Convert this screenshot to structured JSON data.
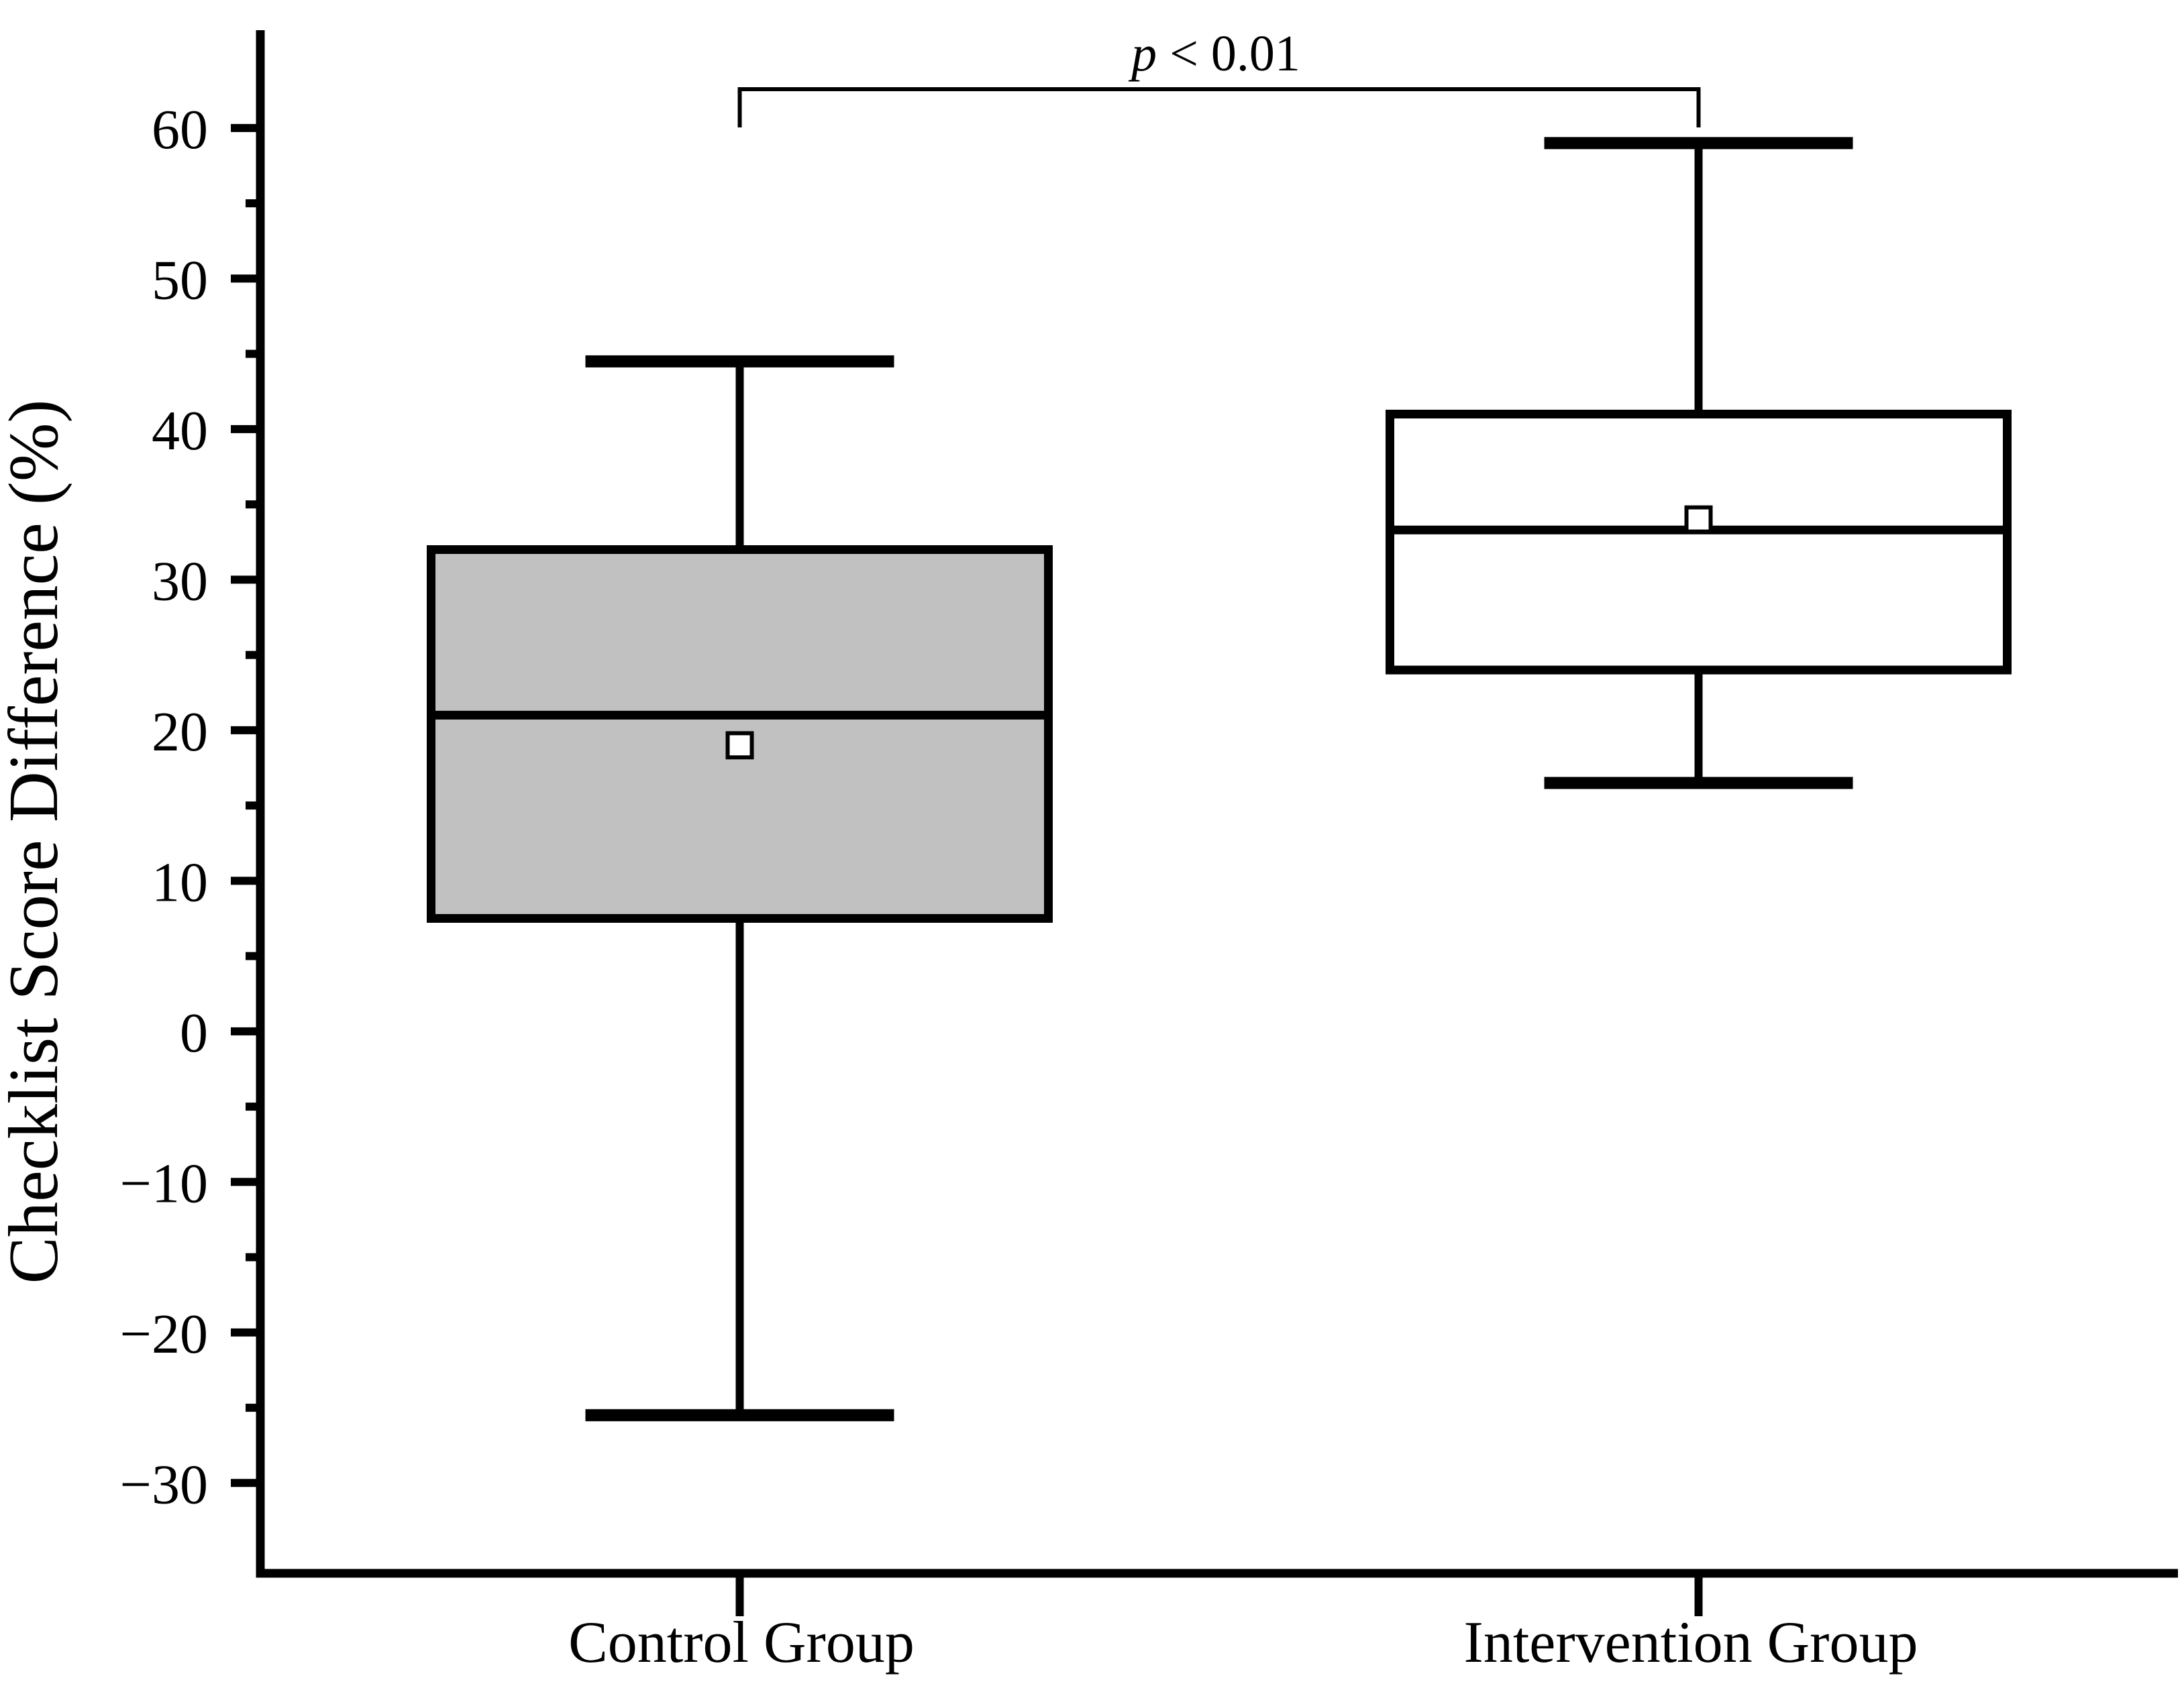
{
  "chart_data": {
    "type": "box",
    "title": "",
    "xlabel": "",
    "ylabel": "Checklist Score Difference (%)",
    "categories": [
      "Control Group",
      "Intervention Group"
    ],
    "ylim": [
      -36,
      66.5
    ],
    "yticks_major": [
      60,
      50,
      40,
      30,
      20,
      10,
      0,
      -10,
      -20,
      -30
    ],
    "yticks_minor": [
      55,
      45,
      35,
      25,
      15,
      5,
      -5,
      -15,
      -25
    ],
    "grid": false,
    "legend": "none",
    "series": [
      {
        "name": "Control Group",
        "whisker_low": -25.5,
        "q1": 7.5,
        "median": 21,
        "mean": 19,
        "q3": 32,
        "whisker_high": 44.5,
        "fill": "#c1c1c1"
      },
      {
        "name": "Intervention Group",
        "whisker_low": 16.5,
        "q1": 24,
        "median": 33.3,
        "mean": 34,
        "q3": 41,
        "whisker_high": 59,
        "fill": "#ffffff"
      }
    ],
    "annotation": {
      "label": "p < 0.01",
      "p_symbol": "p",
      "comparison": " < 0.01",
      "connects": [
        "Control Group",
        "Intervention Group"
      ]
    },
    "colors": {
      "stroke": "#000000",
      "control_box_fill": "#c1c1c1",
      "intervention_box_fill": "#ffffff",
      "background": "#ffffff"
    }
  }
}
